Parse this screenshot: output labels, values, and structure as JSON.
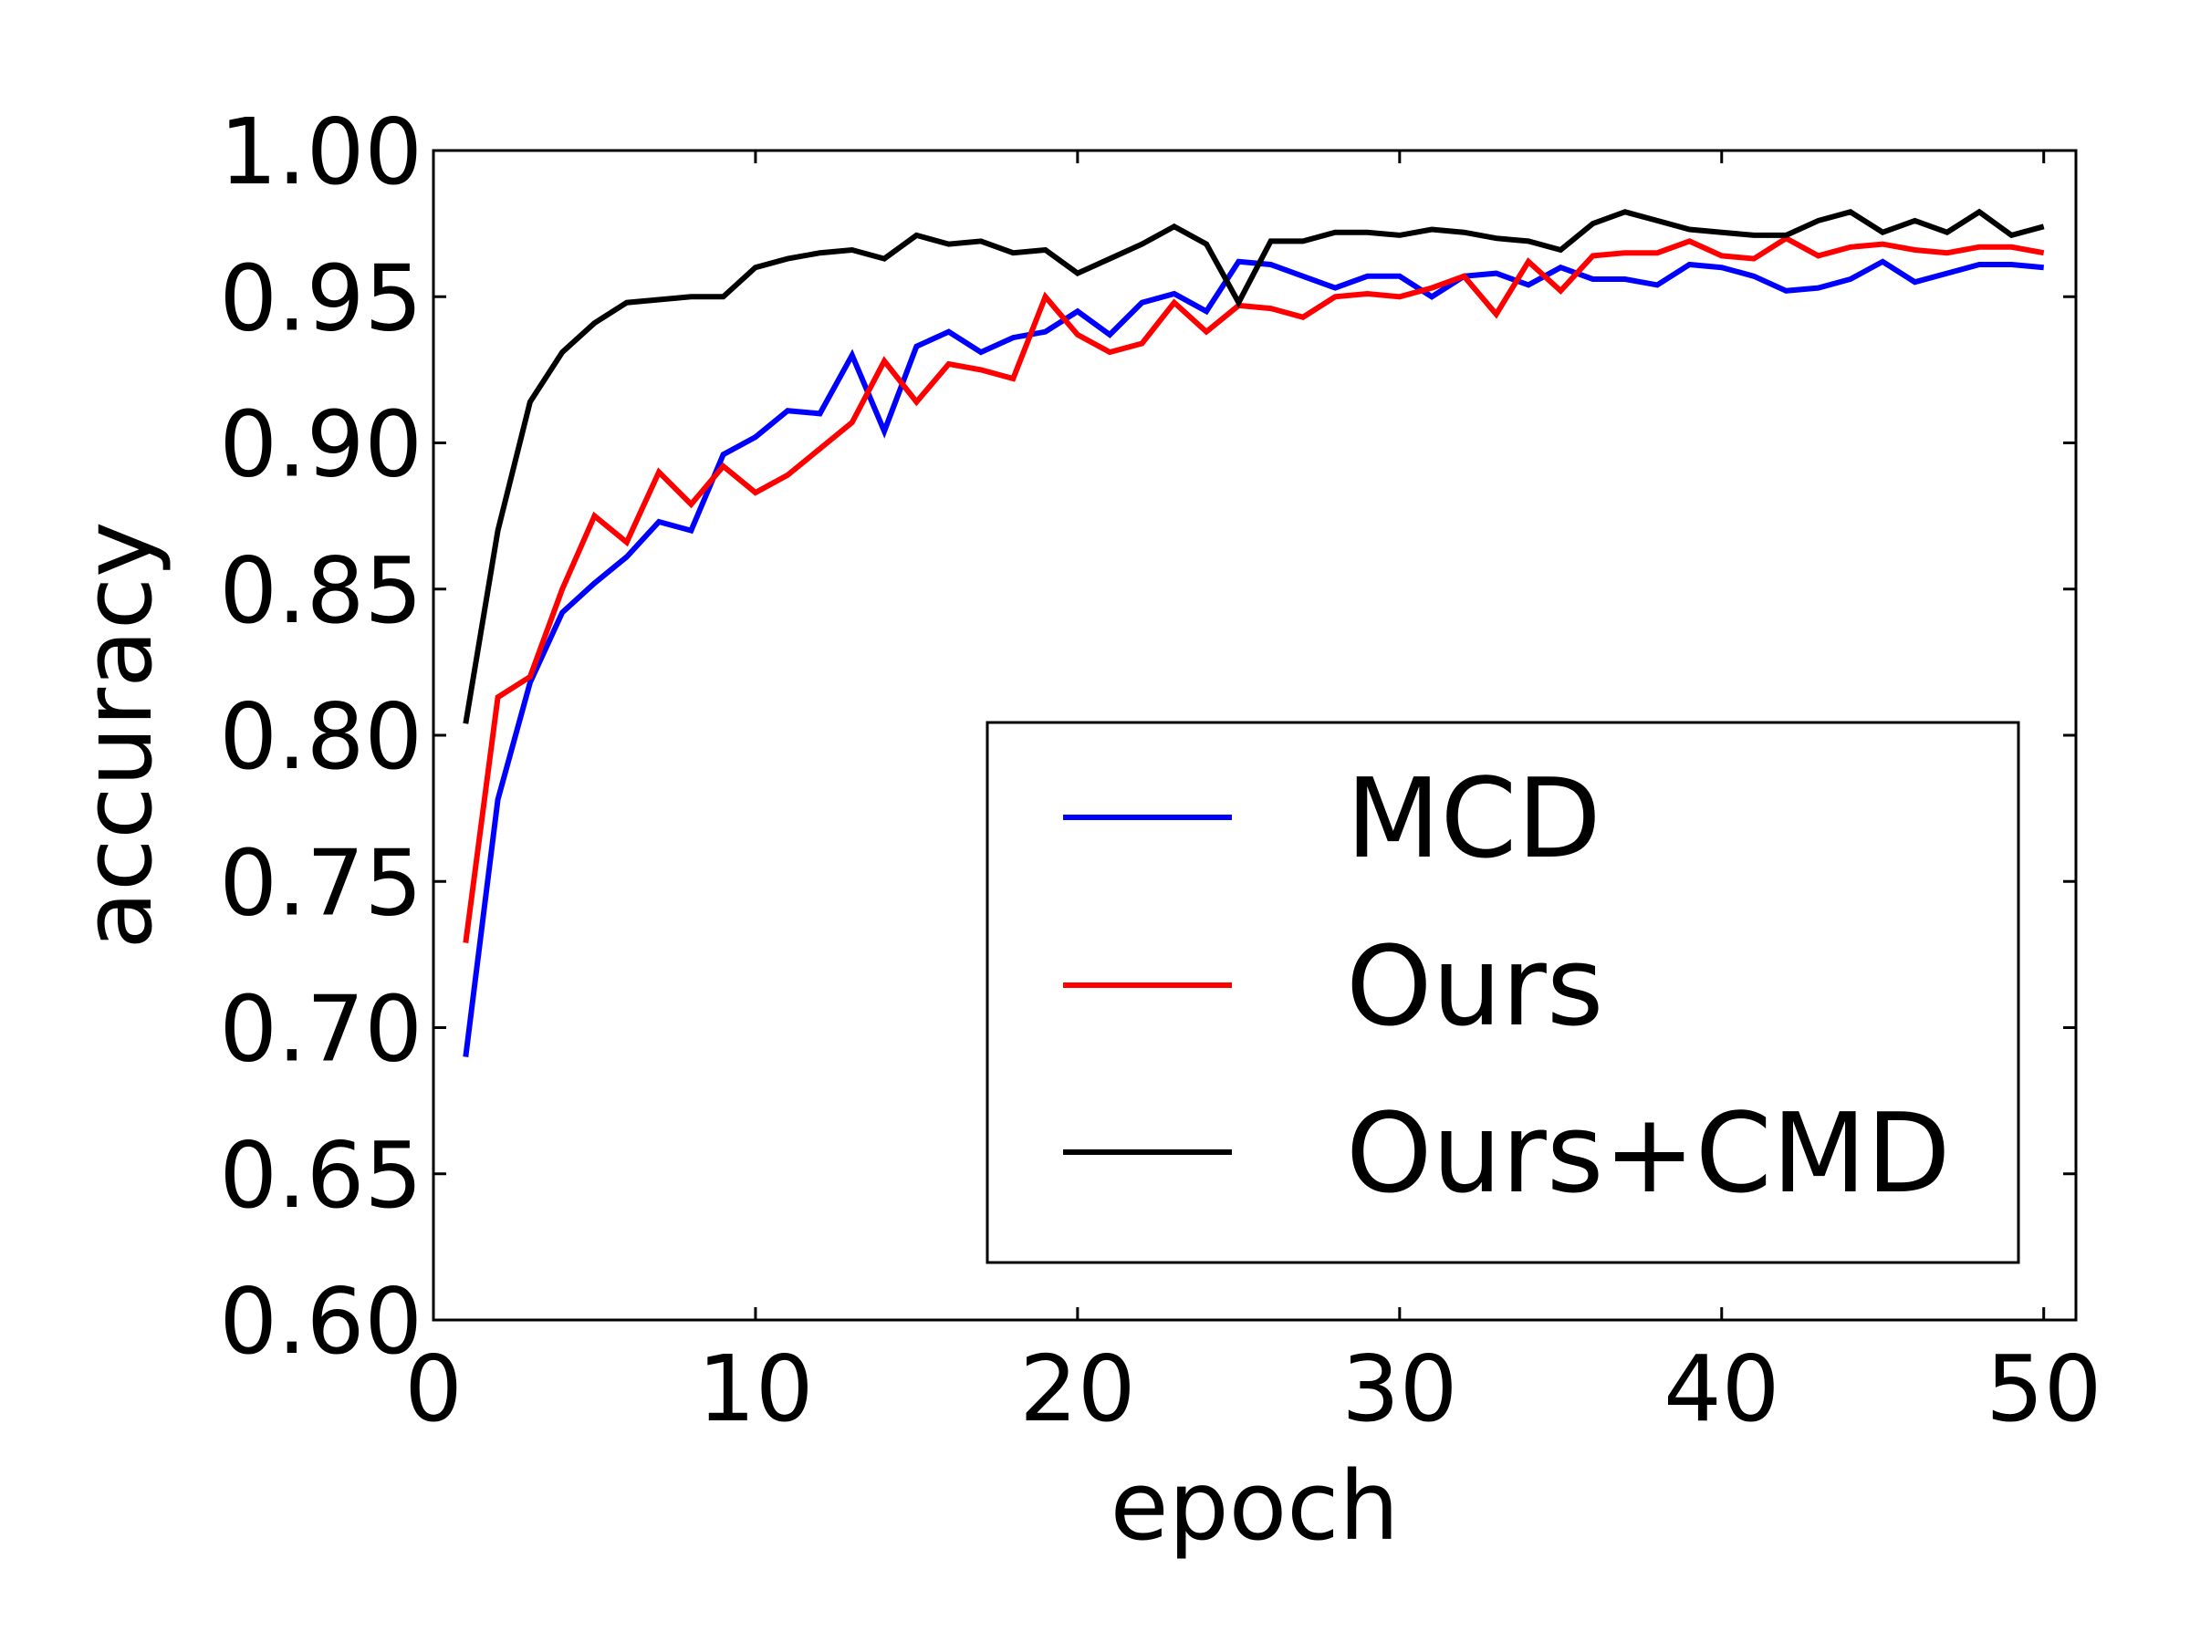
{
  "chart_data": {
    "type": "line",
    "xlabel": "epoch",
    "ylabel": "accuracy",
    "xlim": [
      0,
      51
    ],
    "ylim": [
      0.6,
      1.0
    ],
    "xticks": [
      0,
      10,
      20,
      30,
      40,
      50
    ],
    "xtick_labels": [
      "0",
      "10",
      "20",
      "30",
      "40",
      "50"
    ],
    "yticks": [
      0.6,
      0.65,
      0.7,
      0.75,
      0.8,
      0.85,
      0.9,
      0.95,
      1.0
    ],
    "ytick_labels": [
      "0.60",
      "0.65",
      "0.70",
      "0.75",
      "0.80",
      "0.85",
      "0.90",
      "0.95",
      "1.00"
    ],
    "grid": false,
    "legend_position": "lower-right",
    "x": [
      1,
      2,
      3,
      4,
      5,
      6,
      7,
      8,
      9,
      10,
      11,
      12,
      13,
      14,
      15,
      16,
      17,
      18,
      19,
      20,
      21,
      22,
      23,
      24,
      25,
      26,
      27,
      28,
      29,
      30,
      31,
      32,
      33,
      34,
      35,
      36,
      37,
      38,
      39,
      40,
      41,
      42,
      43,
      44,
      45,
      46,
      47,
      48,
      49,
      50
    ],
    "series": [
      {
        "name": "MCD",
        "color": "#0000ff",
        "values": [
          0.69,
          0.778,
          0.818,
          0.842,
          0.852,
          0.861,
          0.873,
          0.87,
          0.896,
          0.902,
          0.911,
          0.91,
          0.93,
          0.904,
          0.933,
          0.938,
          0.931,
          0.936,
          0.938,
          0.945,
          0.937,
          0.948,
          0.951,
          0.945,
          0.962,
          0.961,
          0.957,
          0.953,
          0.957,
          0.957,
          0.95,
          0.957,
          0.958,
          0.954,
          0.96,
          0.956,
          0.956,
          0.954,
          0.961,
          0.96,
          0.957,
          0.952,
          0.953,
          0.956,
          0.962,
          0.955,
          0.958,
          0.961,
          0.961,
          0.96
        ]
      },
      {
        "name": "Ours",
        "color": "#ff0000",
        "values": [
          0.729,
          0.813,
          0.82,
          0.85,
          0.875,
          0.866,
          0.89,
          0.879,
          0.892,
          0.883,
          0.889,
          0.898,
          0.907,
          0.928,
          0.914,
          0.927,
          0.925,
          0.922,
          0.95,
          0.937,
          0.931,
          0.934,
          0.948,
          0.938,
          0.947,
          0.946,
          0.943,
          0.95,
          0.951,
          0.95,
          0.953,
          0.957,
          0.944,
          0.962,
          0.952,
          0.964,
          0.965,
          0.965,
          0.969,
          0.964,
          0.963,
          0.97,
          0.964,
          0.967,
          0.968,
          0.966,
          0.965,
          0.967,
          0.967,
          0.965
        ]
      },
      {
        "name": "Ours+CMD",
        "color": "#000000",
        "values": [
          0.804,
          0.87,
          0.914,
          0.931,
          0.941,
          0.948,
          0.949,
          0.95,
          0.95,
          0.96,
          0.963,
          0.965,
          0.966,
          0.963,
          0.971,
          0.968,
          0.969,
          0.965,
          0.966,
          0.958,
          0.963,
          0.968,
          0.974,
          0.968,
          0.948,
          0.969,
          0.969,
          0.972,
          0.972,
          0.971,
          0.973,
          0.972,
          0.97,
          0.969,
          0.966,
          0.975,
          0.979,
          0.976,
          0.973,
          0.972,
          0.971,
          0.971,
          0.976,
          0.979,
          0.972,
          0.976,
          0.972,
          0.979,
          0.971,
          0.974
        ]
      }
    ]
  }
}
